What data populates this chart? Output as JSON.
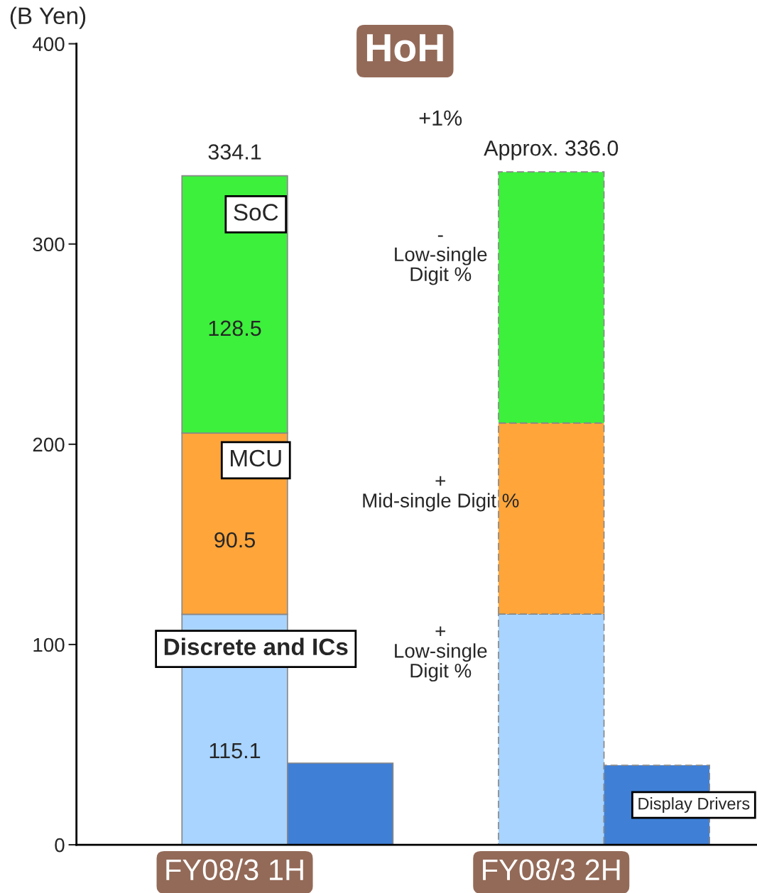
{
  "chart_data": {
    "type": "bar",
    "title": "HoH",
    "ylabel": "(B Yen)",
    "categories": [
      "FY08/3 1H",
      null,
      "FY08/3 2H",
      null
    ],
    "stacked": true,
    "series": [
      {
        "name": "Discrete and ICs",
        "color": "#a8d4ff",
        "values": [
          115.1,
          null,
          115.2,
          null
        ],
        "value_labels": [
          "115.1",
          null,
          null,
          null
        ]
      },
      {
        "name": "MCU",
        "color": "#ffa53a",
        "values": [
          90.5,
          null,
          95.4,
          null
        ],
        "value_labels": [
          "90.5",
          null,
          null,
          null
        ]
      },
      {
        "name": "SoC",
        "color": "#3cf03c",
        "values": [
          128.5,
          null,
          125.4,
          null
        ],
        "value_labels": [
          "128.5",
          null,
          null,
          null
        ]
      },
      {
        "name": "Display Drivers",
        "color": "#3f7fd6",
        "values": [
          null,
          40.8,
          null,
          39.7
        ]
      }
    ],
    "totals": [
      "334.1",
      null,
      "Approx. 336.0",
      null
    ],
    "annotations": [
      "+1%",
      "-\nLow-single\nDigit %",
      "+\nMid-single Digit %",
      "+\nLow-single\nDigit %"
    ],
    "ylim": [
      0,
      400
    ],
    "yticks": [
      0,
      100,
      200,
      300,
      400
    ],
    "grid": false,
    "legend": false
  }
}
